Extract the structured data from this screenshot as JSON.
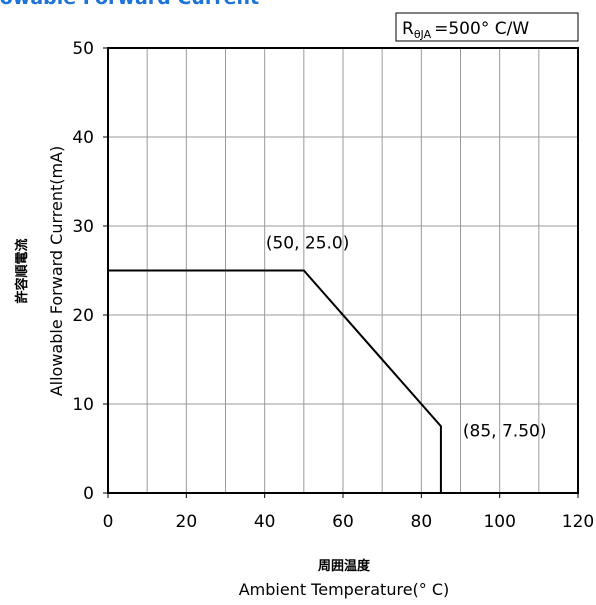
{
  "chart_data": {
    "type": "line",
    "title": "Allowable Forward Current",
    "xlabel_jp": "周囲温度",
    "xlabel": "Ambient Temperature(° C)",
    "ylabel_jp": "許容順電流",
    "ylabel": "Allowable Forward Current(mA)",
    "xlim": [
      0,
      120
    ],
    "ylim": [
      0,
      50
    ],
    "xticks": [
      "0",
      "20",
      "40",
      "60",
      "80",
      "100",
      "120"
    ],
    "yticks": [
      "0",
      "10",
      "20",
      "30",
      "40",
      "50"
    ],
    "grid": true,
    "legend_box": {
      "prefix": "R",
      "subscript": "θJA",
      "value": "=500° C/W"
    },
    "series": [
      {
        "x": [
          0,
          50,
          85,
          85
        ],
        "y": [
          25,
          25,
          7.5,
          0
        ]
      }
    ],
    "annotations": [
      {
        "text": "(50, 25.0)",
        "x": 50,
        "y": 25
      },
      {
        "text": "(85, 7.50)",
        "x": 85,
        "y": 7.5
      }
    ]
  }
}
